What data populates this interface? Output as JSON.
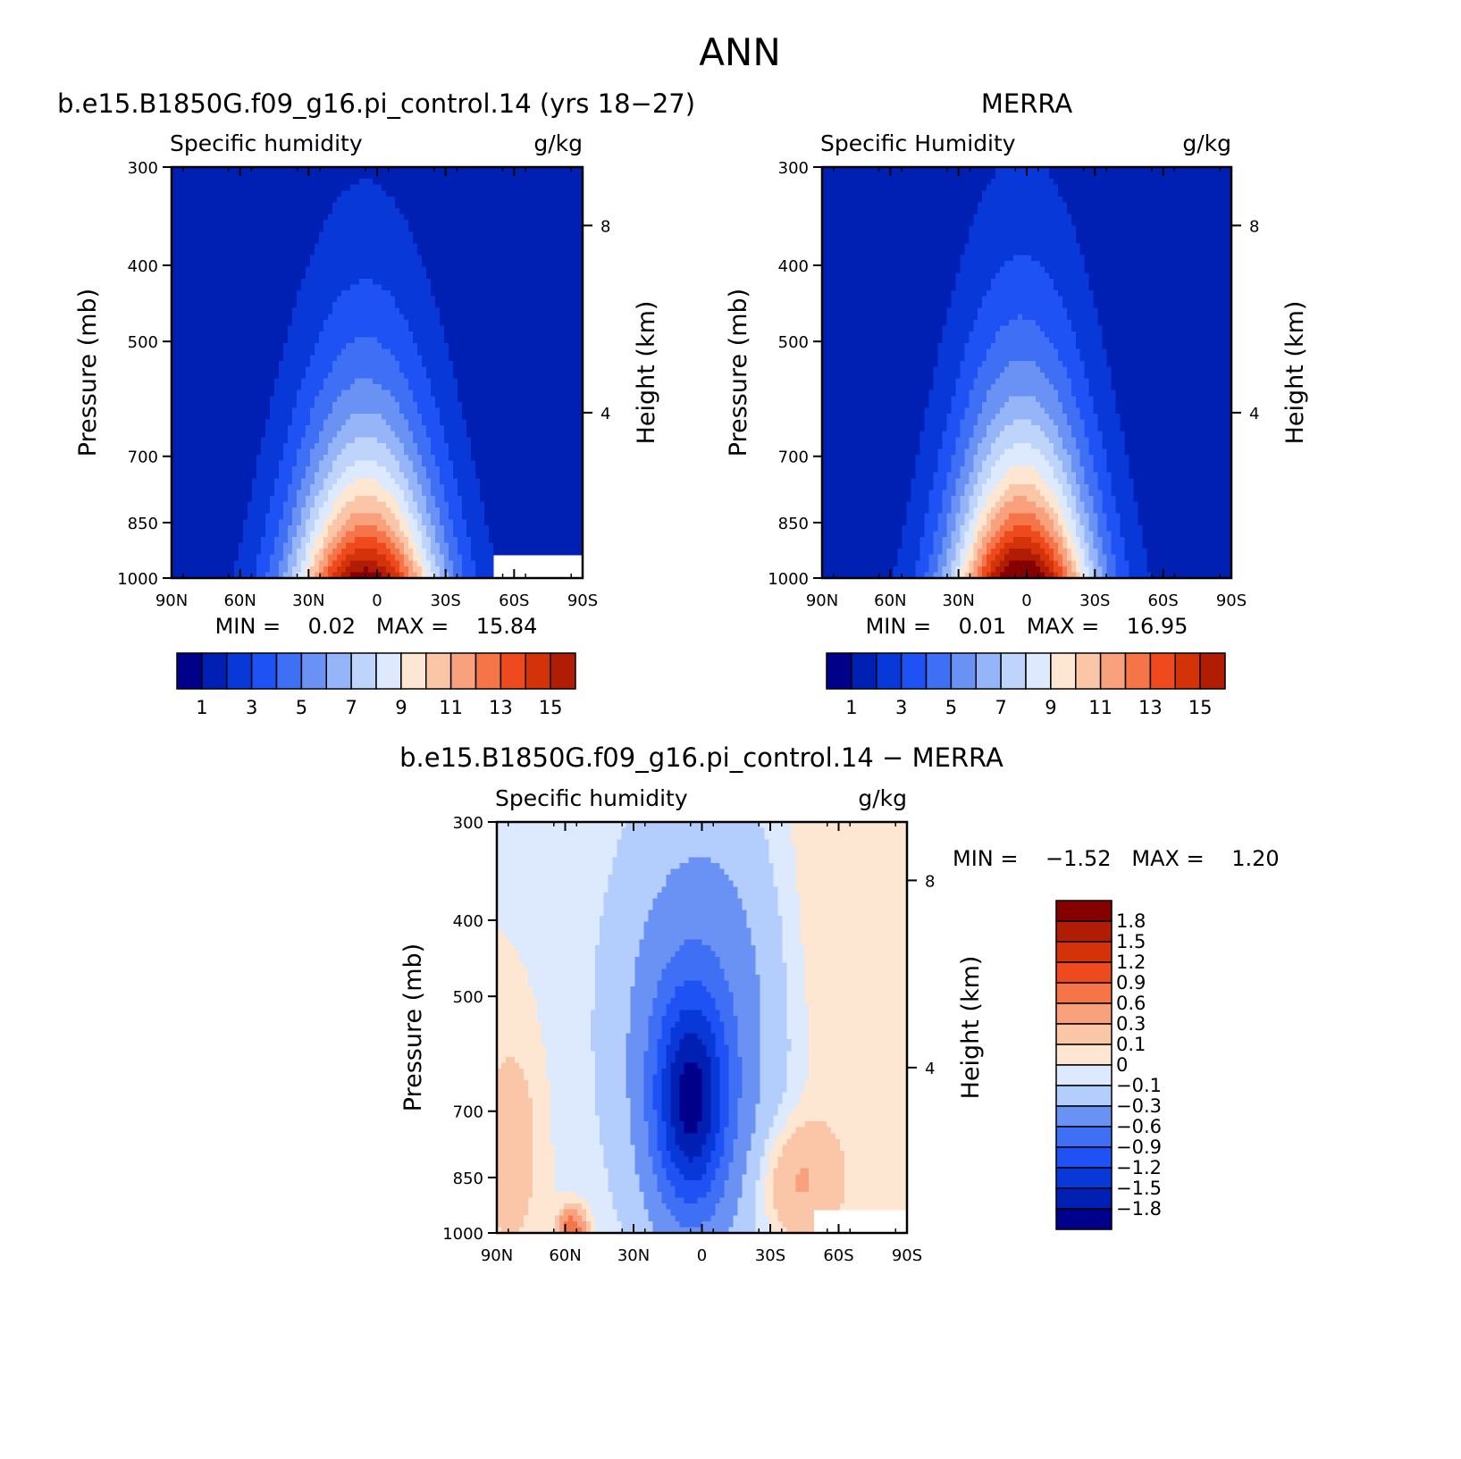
{
  "figure_title": "ANN",
  "chart_data": [
    {
      "type": "heatmap",
      "panel_title": "b.e15.B1850G.f09_g16.pi_control.14 (yrs 18−27)",
      "left_string": "Specific humidity",
      "right_string": "g/kg",
      "ylabel": "Pressure (mb)",
      "y2label": "Height (km)",
      "x_ticks": [
        "90N",
        "60N",
        "30N",
        "0",
        "30S",
        "60S",
        "90S"
      ],
      "y_ticks": [
        "300",
        "400",
        "500",
        "700",
        "850",
        "1000"
      ],
      "y2_ticks": [
        "8",
        "4"
      ],
      "x_range": [
        90,
        -90
      ],
      "y_range": [
        1000,
        300
      ],
      "y_scale": "log-pressure",
      "stats_text": "MIN =    0.02   MAX =    15.84",
      "min": 0.02,
      "max": 15.84,
      "colorbar_orientation": "horizontal",
      "colorbar_labels": [
        "1",
        "3",
        "5",
        "7",
        "9",
        "11",
        "13",
        "15"
      ],
      "levels": [
        1,
        2,
        3,
        4,
        5,
        6,
        7,
        8,
        9,
        10,
        11,
        12,
        13,
        14,
        15
      ],
      "peak_lat": 5,
      "peak_value": 15.84,
      "missing_region": "south polar surface (below ~930 mb, poleward of 50S)"
    },
    {
      "type": "heatmap",
      "panel_title": "MERRA",
      "left_string": "Specific Humidity",
      "right_string": "g/kg",
      "ylabel": "Pressure (mb)",
      "y2label": "Height (km)",
      "x_ticks": [
        "90N",
        "60N",
        "30N",
        "0",
        "30S",
        "60S",
        "90S"
      ],
      "y_ticks": [
        "300",
        "400",
        "500",
        "700",
        "850",
        "1000"
      ],
      "y2_ticks": [
        "8",
        "4"
      ],
      "x_range": [
        90,
        -90
      ],
      "y_range": [
        1000,
        300
      ],
      "y_scale": "log-pressure",
      "stats_text": "MIN =    0.01   MAX =    16.95",
      "min": 0.01,
      "max": 16.95,
      "colorbar_orientation": "horizontal",
      "colorbar_labels": [
        "1",
        "3",
        "5",
        "7",
        "9",
        "11",
        "13",
        "15"
      ],
      "levels": [
        1,
        2,
        3,
        4,
        5,
        6,
        7,
        8,
        9,
        10,
        11,
        12,
        13,
        14,
        15
      ],
      "peak_lat": 2,
      "peak_value": 16.95
    },
    {
      "type": "heatmap",
      "panel_title": "b.e15.B1850G.f09_g16.pi_control.14 − MERRA",
      "left_string": "Specific humidity",
      "right_string": "g/kg",
      "ylabel": "Pressure (mb)",
      "y2label": "Height (km)",
      "x_ticks": [
        "90N",
        "60N",
        "30N",
        "0",
        "30S",
        "60S",
        "90S"
      ],
      "y_ticks": [
        "300",
        "400",
        "500",
        "700",
        "850",
        "1000"
      ],
      "y2_ticks": [
        "8",
        "4"
      ],
      "x_range": [
        90,
        -90
      ],
      "y_range": [
        1000,
        300
      ],
      "y_scale": "log-pressure",
      "stats_text": "MIN =    −1.52   MAX =    1.20",
      "min": -1.52,
      "max": 1.2,
      "colorbar_orientation": "vertical",
      "colorbar_labels": [
        "1.8",
        "1.5",
        "1.2",
        "0.9",
        "0.6",
        "0.3",
        "0.1",
        "0",
        "−0.1",
        "−0.3",
        "−0.6",
        "−0.9",
        "−1.2",
        "−1.5",
        "−1.8"
      ],
      "levels": [
        -1.8,
        -1.5,
        -1.2,
        -0.9,
        -0.6,
        -0.3,
        -0.1,
        0,
        0.1,
        0.3,
        0.6,
        0.9,
        1.2,
        1.5,
        1.8
      ]
    }
  ],
  "colors": {
    "seq_palette": [
      "#00008b",
      "#0020b4",
      "#0838d8",
      "#1e52f5",
      "#3e6ff5",
      "#6a92f5",
      "#96b4f8",
      "#bfd4fb",
      "#dde9fc",
      "#fde6d2",
      "#fbc5a8",
      "#f9a07c",
      "#f57448",
      "#ef4a1e",
      "#d43208",
      "#b01c04",
      "#870000"
    ],
    "diff_palette": [
      "#00008b",
      "#0020b4",
      "#0838d8",
      "#1e52f5",
      "#3e6ff5",
      "#6a92f5",
      "#b3cdfc",
      "#dde9fc",
      "#fde6d2",
      "#fbc5a8",
      "#f9a07c",
      "#f57448",
      "#ef4a1e",
      "#d43208",
      "#b01c04",
      "#870000"
    ]
  }
}
